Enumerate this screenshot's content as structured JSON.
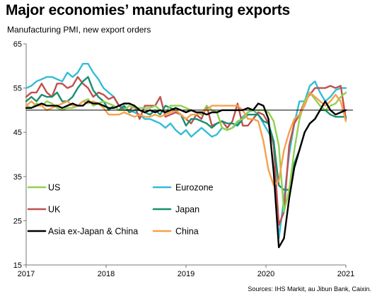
{
  "chart_data": {
    "type": "line",
    "title": "Major economies’ manufacturing exports",
    "subtitle": "Manufacturing  PMI, new export  orders",
    "source": "Sources: IHS Markit, au Jibun Bank, Caixin.",
    "xlabel": "",
    "ylabel": "",
    "xlim": [
      2017.0,
      2021.0
    ],
    "ylim": [
      15,
      65
    ],
    "x_ticks": [
      2017,
      2018,
      2019,
      2020,
      2021
    ],
    "x_tick_labels": [
      "2017",
      "2018",
      "2019",
      "2020",
      "2021"
    ],
    "y_ticks": [
      15,
      25,
      35,
      45,
      55,
      65
    ],
    "y_tick_labels": [
      "15",
      "25",
      "35",
      "45",
      "55",
      "65"
    ],
    "reference_line": 50,
    "grid": false,
    "legend_position": "center-right",
    "series": [
      {
        "name": "US",
        "color": "#92d050",
        "values": [
          51,
          50.5,
          51.5,
          51,
          52,
          51.5,
          50.5,
          50,
          50.5,
          50.5,
          51,
          52,
          52.5,
          51,
          51.5,
          52,
          51.5,
          51,
          50,
          50,
          51,
          50.5,
          50.5,
          50.5,
          50.5,
          51,
          50,
          49.5,
          51,
          51,
          51,
          50.5,
          50,
          49.5,
          49,
          51,
          50,
          49.5,
          46,
          45.5,
          46,
          47.5,
          48,
          49.5,
          50,
          50,
          50,
          49.5,
          47.5,
          42,
          27,
          32,
          41,
          48,
          52,
          54,
          52.5,
          51,
          50,
          51,
          51.5,
          53,
          54
        ]
      },
      {
        "name": "Eurozone",
        "color": "#33bdd6",
        "values": [
          55,
          55.5,
          56.5,
          57,
          57.5,
          57.5,
          57,
          56.5,
          58.5,
          57.5,
          58.5,
          60.5,
          60.5,
          58.5,
          57,
          55,
          54,
          53,
          51,
          50.5,
          50,
          49.5,
          49,
          48,
          48,
          47.5,
          47,
          46,
          47,
          45.5,
          44.5,
          45.5,
          44,
          45,
          46,
          45,
          44,
          44.5,
          46,
          45.5,
          46,
          47,
          48.5,
          49.5,
          50,
          49,
          47,
          45,
          43,
          21,
          30,
          40,
          47,
          52,
          52,
          55.5,
          56.5,
          54,
          52,
          53,
          54.5,
          55,
          55
        ]
      },
      {
        "name": "UK",
        "color": "#c0504d",
        "values": [
          53,
          54,
          54,
          56,
          54,
          53,
          56,
          56,
          55,
          55.5,
          57.5,
          56,
          55,
          53,
          54,
          53.5,
          52.5,
          53,
          51,
          50,
          50,
          51,
          48,
          51,
          51,
          51,
          53,
          48.5,
          49,
          49.5,
          49,
          48,
          47,
          49,
          48,
          51,
          46.5,
          47,
          47.5,
          46,
          47.5,
          51.5,
          46.5,
          46.5,
          48,
          49.5,
          49,
          47,
          42,
          24,
          27,
          42,
          47,
          49,
          52,
          53.5,
          55,
          55,
          55,
          55.5,
          55,
          55.5,
          48
        ]
      },
      {
        "name": "Japan",
        "color": "#158f6f",
        "values": [
          52,
          53,
          52,
          53.5,
          53,
          53,
          54,
          52,
          52,
          53,
          55,
          56.5,
          57.5,
          54.5,
          53,
          52,
          50,
          51,
          50,
          51,
          49.5,
          50,
          50,
          49.5,
          49,
          50,
          49,
          51,
          50.5,
          50,
          49,
          46.5,
          48,
          48,
          47.5,
          47,
          46,
          47,
          47.5,
          47,
          47,
          46.5,
          48,
          49,
          49,
          49,
          47.5,
          47,
          43,
          33,
          32,
          32,
          38,
          41,
          45,
          47,
          48,
          50,
          50,
          49,
          48.5,
          48.5,
          48.5
        ]
      },
      {
        "name": "Asia ex-Japan & China",
        "color": "#000000",
        "values": [
          50.5,
          50.5,
          51,
          51.5,
          51,
          51,
          51,
          50.5,
          51,
          51.5,
          51,
          51,
          52,
          51.5,
          51.5,
          51,
          50.5,
          50.5,
          51,
          51.5,
          51.5,
          51,
          50,
          49.5,
          50,
          49.5,
          50,
          49.5,
          50,
          50.5,
          50,
          49.5,
          50,
          49.5,
          49.5,
          49,
          49.5,
          49.5,
          50,
          50,
          50,
          50,
          50,
          50.5,
          50,
          51.5,
          51,
          48,
          36,
          19,
          21,
          30,
          37,
          41,
          45,
          47,
          48,
          50,
          52,
          50,
          49,
          49.5,
          50
        ]
      },
      {
        "name": "China",
        "color": "#f6a04d",
        "values": [
          51,
          52,
          51,
          51,
          50,
          50.5,
          51,
          51.5,
          52,
          51,
          51,
          52,
          51.5,
          52,
          51.5,
          50.5,
          49,
          49,
          49,
          49.5,
          49,
          48.5,
          49,
          48.5,
          48.5,
          49,
          48.5,
          49,
          49.5,
          50,
          49,
          48,
          49,
          49,
          49.5,
          50,
          51,
          51,
          51,
          51,
          51,
          51,
          50,
          48,
          48,
          47.5,
          43,
          36.5,
          33,
          34,
          41,
          45,
          48,
          49,
          51,
          54,
          53,
          52,
          51,
          52,
          53.5,
          52,
          47.5
        ]
      }
    ]
  }
}
